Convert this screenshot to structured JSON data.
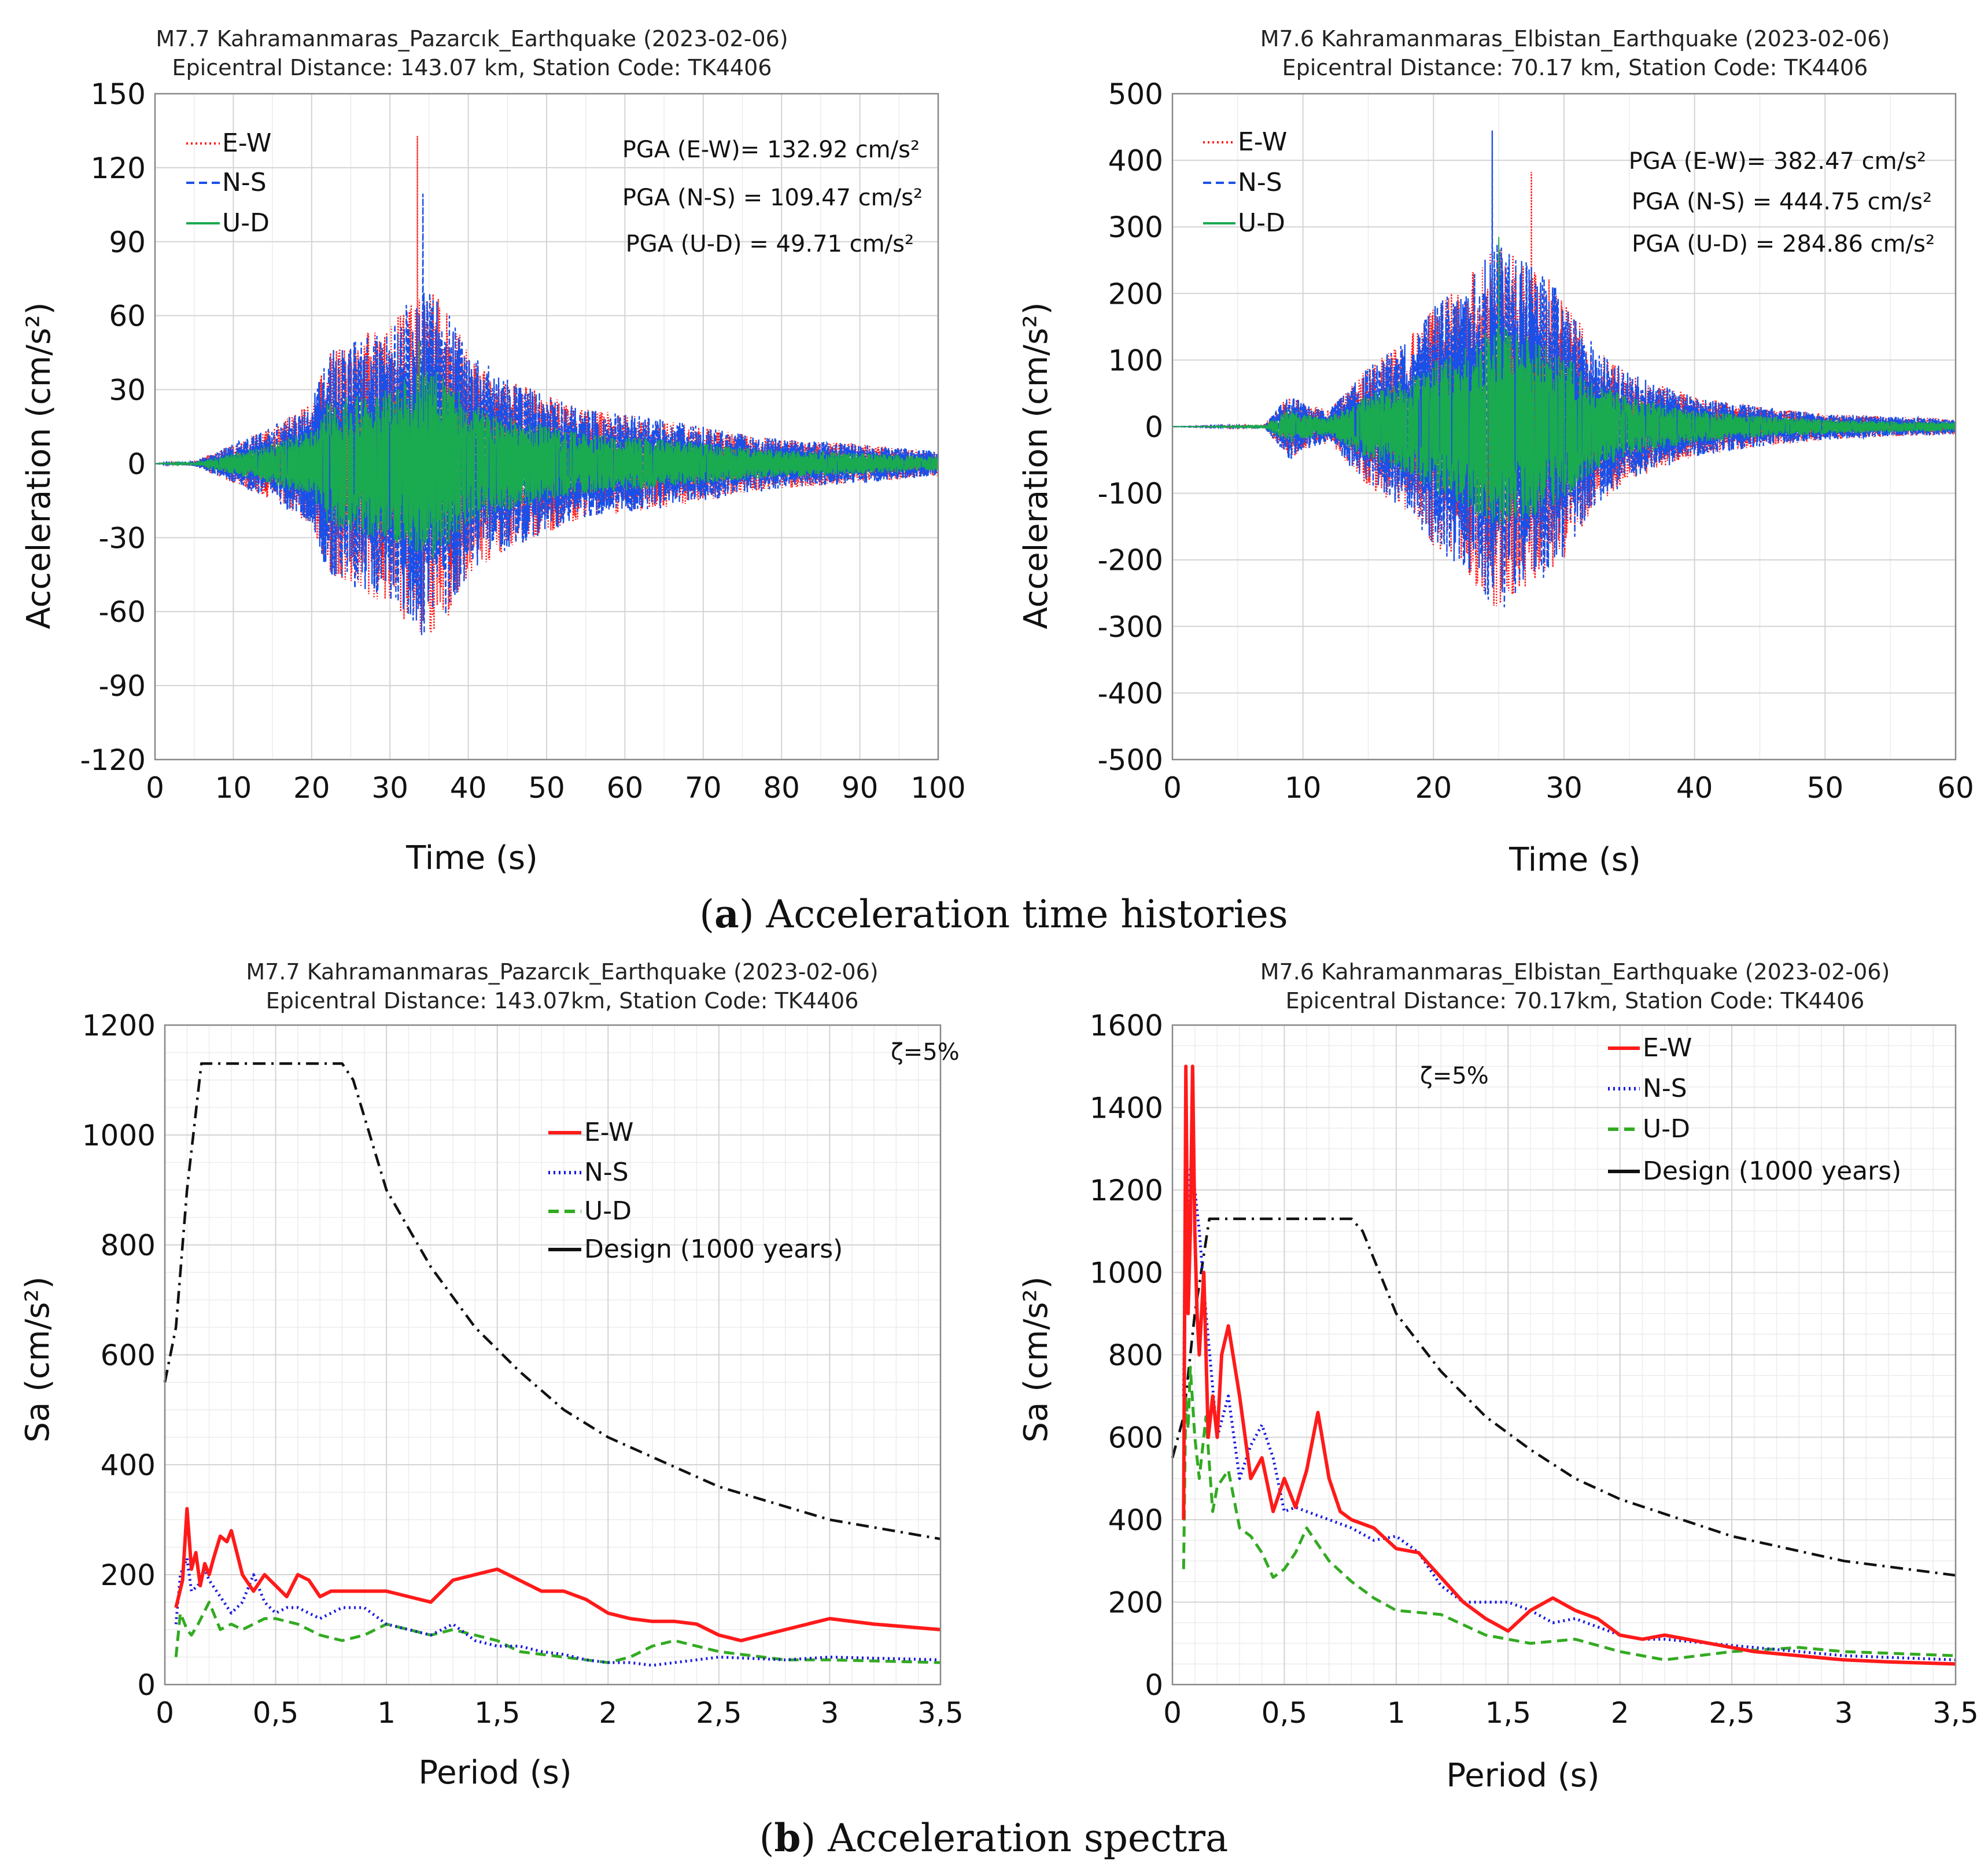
{
  "colors": {
    "ew": "#ff1a1a",
    "ns": "#1a50e8",
    "ud": "#1aaa50",
    "ud_spec": "#33aa22",
    "ns_spec": "#1a1ae0",
    "design": "#111111"
  },
  "captions": {
    "a": {
      "label": "a",
      "text": "Acceleration time histories"
    },
    "b": {
      "label": "b",
      "text": "Acceleration spectra"
    }
  },
  "chart_data": [
    {
      "type": "line",
      "title": "M7.7 Kahramanmaras_Pazarcık_Earthquake (2023-02-06)",
      "subtitle": "Epicentral Distance: 143.07 km, Station Code: TK4406",
      "xlabel": "Time (s)",
      "ylabel": "Acceleration (cm/s²)",
      "xlim": [
        0,
        100
      ],
      "ylim": [
        -120,
        150
      ],
      "xticks": [
        "0",
        "10",
        "20",
        "30",
        "40",
        "50",
        "60",
        "70",
        "80",
        "90",
        "100"
      ],
      "yticks": [
        "150",
        "120",
        "90",
        "60",
        "30",
        "0",
        "-30",
        "-60",
        "-90",
        "-120"
      ],
      "grid": true,
      "legend": [
        "E-W",
        "N-S",
        "U-D"
      ],
      "annotations": [
        "PGA (E-W)= 132.92 cm/s²",
        "PGA (N-S) = 109.47 cm/s²",
        "PGA (U-D) = 49.71 cm/s²"
      ],
      "envelope": {
        "t": [
          0,
          5,
          10,
          15,
          20,
          22,
          25,
          28,
          30,
          32,
          34,
          36,
          38,
          40,
          45,
          50,
          55,
          60,
          65,
          70,
          75,
          80,
          90,
          100
        ],
        "amp": [
          0,
          1,
          8,
          15,
          25,
          45,
          50,
          55,
          55,
          65,
          70,
          70,
          60,
          45,
          35,
          28,
          22,
          20,
          18,
          15,
          12,
          10,
          8,
          5
        ]
      },
      "pga": {
        "ew": 132.92,
        "ns": 109.47,
        "ud": 49.71
      }
    },
    {
      "type": "line",
      "title": "M7.6 Kahramanmaras_Elbistan_Earthquake (2023-02-06)",
      "subtitle": "Epicentral Distance: 70.17 km, Station Code: TK4406",
      "xlabel": "Time (s)",
      "ylabel": "Acceleration (cm/s²)",
      "xlim": [
        0,
        60
      ],
      "ylim": [
        -500,
        500
      ],
      "xticks": [
        "0",
        "10",
        "20",
        "30",
        "40",
        "50",
        "60"
      ],
      "yticks": [
        "500",
        "400",
        "300",
        "200",
        "100",
        "0",
        "-100",
        "-200",
        "-300",
        "-400",
        "-500"
      ],
      "grid": true,
      "legend": [
        "E-W",
        "N-S",
        "U-D"
      ],
      "annotations": [
        "PGA (E-W)= 382.47 cm/s²",
        "PGA (N-S) = 444.75 cm/s²",
        "PGA (U-D) = 284.86 cm/s²"
      ],
      "envelope": {
        "t": [
          0,
          7,
          9,
          10,
          12,
          15,
          18,
          20,
          22,
          24,
          25,
          26,
          28,
          30,
          32,
          35,
          40,
          45,
          50,
          55,
          60
        ],
        "amp": [
          0,
          2,
          50,
          35,
          25,
          90,
          130,
          180,
          210,
          260,
          280,
          260,
          240,
          200,
          130,
          80,
          45,
          30,
          20,
          15,
          12
        ]
      },
      "pga": {
        "ew": 382.47,
        "ns": 444.75,
        "ud": 284.86
      }
    },
    {
      "type": "line",
      "title": "M7.7 Kahramanmaras_Pazarcık_Earthquake (2023-02-06)",
      "subtitle": "Epicentral Distance: 143.07km, Station Code: TK4406",
      "xlabel": "Period (s)",
      "ylabel": "Sa (cm/s²)",
      "xlim": [
        0,
        3.5
      ],
      "ylim": [
        0,
        1200
      ],
      "xticks": [
        "0",
        "0,5",
        "1",
        "1,5",
        "2",
        "2,5",
        "3",
        "3,5"
      ],
      "yticks": [
        "1200",
        "1000",
        "800",
        "600",
        "400",
        "200",
        "0"
      ],
      "grid": true,
      "damping": "ζ=5%",
      "legend": [
        "E-W",
        "N-S",
        "U-D",
        "Design (1000 years)"
      ],
      "series": [
        {
          "name": "E-W",
          "x": [
            0.05,
            0.08,
            0.1,
            0.12,
            0.14,
            0.16,
            0.18,
            0.2,
            0.22,
            0.25,
            0.28,
            0.3,
            0.35,
            0.4,
            0.45,
            0.5,
            0.55,
            0.6,
            0.65,
            0.7,
            0.75,
            0.8,
            0.9,
            1.0,
            1.1,
            1.2,
            1.3,
            1.4,
            1.5,
            1.6,
            1.7,
            1.8,
            1.9,
            2.0,
            2.1,
            2.2,
            2.3,
            2.4,
            2.5,
            2.6,
            2.7,
            2.8,
            2.9,
            3.0,
            3.2,
            3.5
          ],
          "values": [
            140,
            190,
            320,
            210,
            240,
            180,
            220,
            200,
            230,
            270,
            260,
            280,
            200,
            170,
            200,
            180,
            160,
            200,
            190,
            160,
            170,
            170,
            170,
            170,
            160,
            150,
            190,
            200,
            210,
            190,
            170,
            170,
            155,
            130,
            120,
            115,
            115,
            110,
            90,
            80,
            90,
            100,
            110,
            120,
            110,
            100
          ]
        },
        {
          "name": "N-S",
          "x": [
            0.05,
            0.07,
            0.1,
            0.12,
            0.15,
            0.18,
            0.2,
            0.25,
            0.3,
            0.35,
            0.4,
            0.45,
            0.5,
            0.55,
            0.6,
            0.7,
            0.8,
            0.9,
            1.0,
            1.1,
            1.2,
            1.3,
            1.4,
            1.5,
            1.6,
            1.7,
            1.8,
            1.9,
            2.0,
            2.1,
            2.2,
            2.3,
            2.5,
            2.8,
            3.0,
            3.5
          ],
          "values": [
            110,
            200,
            230,
            170,
            180,
            210,
            190,
            160,
            130,
            150,
            200,
            150,
            130,
            140,
            140,
            120,
            140,
            140,
            110,
            100,
            90,
            110,
            80,
            70,
            70,
            60,
            55,
            45,
            40,
            40,
            35,
            40,
            50,
            45,
            50,
            45
          ]
        },
        {
          "name": "U-D",
          "x": [
            0.05,
            0.07,
            0.1,
            0.12,
            0.15,
            0.2,
            0.25,
            0.3,
            0.35,
            0.4,
            0.45,
            0.5,
            0.6,
            0.7,
            0.8,
            0.9,
            1.0,
            1.1,
            1.2,
            1.3,
            1.4,
            1.5,
            1.6,
            1.7,
            1.8,
            1.9,
            2.0,
            2.1,
            2.2,
            2.3,
            2.4,
            2.5,
            2.6,
            2.8,
            3.0,
            3.5
          ],
          "values": [
            50,
            130,
            100,
            90,
            110,
            150,
            100,
            110,
            100,
            110,
            120,
            120,
            110,
            90,
            80,
            90,
            110,
            100,
            90,
            100,
            90,
            80,
            60,
            55,
            50,
            45,
            40,
            50,
            70,
            80,
            70,
            60,
            55,
            45,
            45,
            40
          ]
        },
        {
          "name": "Design (1000 years)",
          "x": [
            0.0,
            0.05,
            0.1,
            0.165,
            0.2,
            0.4,
            0.6,
            0.8,
            0.85,
            1.0,
            1.2,
            1.4,
            1.6,
            1.8,
            2.0,
            2.5,
            3.0,
            3.5
          ],
          "values": [
            550,
            650,
            900,
            1130,
            1130,
            1130,
            1130,
            1130,
            1100,
            900,
            760,
            650,
            570,
            500,
            450,
            360,
            300,
            265
          ]
        }
      ]
    },
    {
      "type": "line",
      "title": "M7.6 Kahramanmaras_Elbistan_Earthquake (2023-02-06)",
      "subtitle": "Epicentral Distance: 70.17km, Station Code: TK4406",
      "xlabel": "Period (s)",
      "ylabel": "Sa (cm/s²)",
      "xlim": [
        0,
        3.5
      ],
      "ylim": [
        0,
        1600
      ],
      "xticks": [
        "0",
        "0,5",
        "1",
        "1,5",
        "2",
        "2,5",
        "3",
        "3,5"
      ],
      "yticks": [
        "1600",
        "1400",
        "1200",
        "1000",
        "800",
        "600",
        "400",
        "200",
        "0"
      ],
      "grid": true,
      "damping": "ζ=5%",
      "legend": [
        "E-W",
        "N-S",
        "U-D",
        "Design (1000 years)"
      ],
      "series": [
        {
          "name": "E-W",
          "x": [
            0.05,
            0.06,
            0.07,
            0.08,
            0.09,
            0.1,
            0.11,
            0.12,
            0.14,
            0.16,
            0.18,
            0.2,
            0.22,
            0.25,
            0.3,
            0.35,
            0.4,
            0.45,
            0.5,
            0.55,
            0.6,
            0.65,
            0.7,
            0.75,
            0.8,
            0.9,
            1.0,
            1.1,
            1.2,
            1.3,
            1.4,
            1.5,
            1.6,
            1.7,
            1.8,
            1.9,
            2.0,
            2.1,
            2.2,
            2.4,
            2.6,
            2.8,
            3.0,
            3.2,
            3.5
          ],
          "values": [
            400,
            1500,
            900,
            1100,
            1500,
            1100,
            900,
            800,
            1000,
            600,
            700,
            600,
            800,
            870,
            700,
            500,
            550,
            420,
            500,
            430,
            520,
            660,
            500,
            420,
            400,
            380,
            330,
            320,
            260,
            200,
            160,
            130,
            180,
            210,
            180,
            160,
            120,
            110,
            120,
            100,
            80,
            70,
            60,
            55,
            50
          ]
        },
        {
          "name": "N-S",
          "x": [
            0.05,
            0.06,
            0.07,
            0.08,
            0.1,
            0.12,
            0.15,
            0.2,
            0.25,
            0.3,
            0.35,
            0.4,
            0.45,
            0.5,
            0.55,
            0.6,
            0.7,
            0.8,
            0.9,
            1.0,
            1.1,
            1.2,
            1.3,
            1.4,
            1.5,
            1.6,
            1.7,
            1.8,
            1.9,
            2.0,
            2.1,
            2.2,
            2.4,
            2.6,
            2.8,
            3.0,
            3.5
          ],
          "values": [
            700,
            1300,
            1100,
            1250,
            1200,
            1100,
            900,
            600,
            700,
            500,
            580,
            630,
            550,
            420,
            430,
            420,
            400,
            380,
            350,
            360,
            320,
            240,
            200,
            200,
            200,
            180,
            150,
            160,
            140,
            120,
            110,
            110,
            100,
            90,
            80,
            70,
            60
          ]
        },
        {
          "name": "U-D",
          "x": [
            0.05,
            0.06,
            0.07,
            0.08,
            0.1,
            0.12,
            0.15,
            0.18,
            0.2,
            0.25,
            0.3,
            0.35,
            0.4,
            0.45,
            0.5,
            0.55,
            0.6,
            0.7,
            0.8,
            0.9,
            1.0,
            1.2,
            1.4,
            1.6,
            1.8,
            2.0,
            2.2,
            2.5,
            2.8,
            3.0,
            3.5
          ],
          "values": [
            280,
            700,
            620,
            770,
            600,
            500,
            650,
            420,
            480,
            520,
            380,
            360,
            320,
            260,
            280,
            320,
            380,
            300,
            250,
            210,
            180,
            170,
            120,
            100,
            110,
            80,
            60,
            80,
            90,
            80,
            70
          ]
        },
        {
          "name": "Design (1000 years)",
          "x": [
            0.0,
            0.05,
            0.1,
            0.165,
            0.2,
            0.4,
            0.6,
            0.8,
            0.85,
            1.0,
            1.2,
            1.4,
            1.6,
            1.8,
            2.0,
            2.5,
            3.0,
            3.5
          ],
          "values": [
            550,
            650,
            900,
            1130,
            1130,
            1130,
            1130,
            1130,
            1100,
            900,
            760,
            650,
            570,
            500,
            450,
            360,
            300,
            265
          ]
        }
      ]
    }
  ]
}
